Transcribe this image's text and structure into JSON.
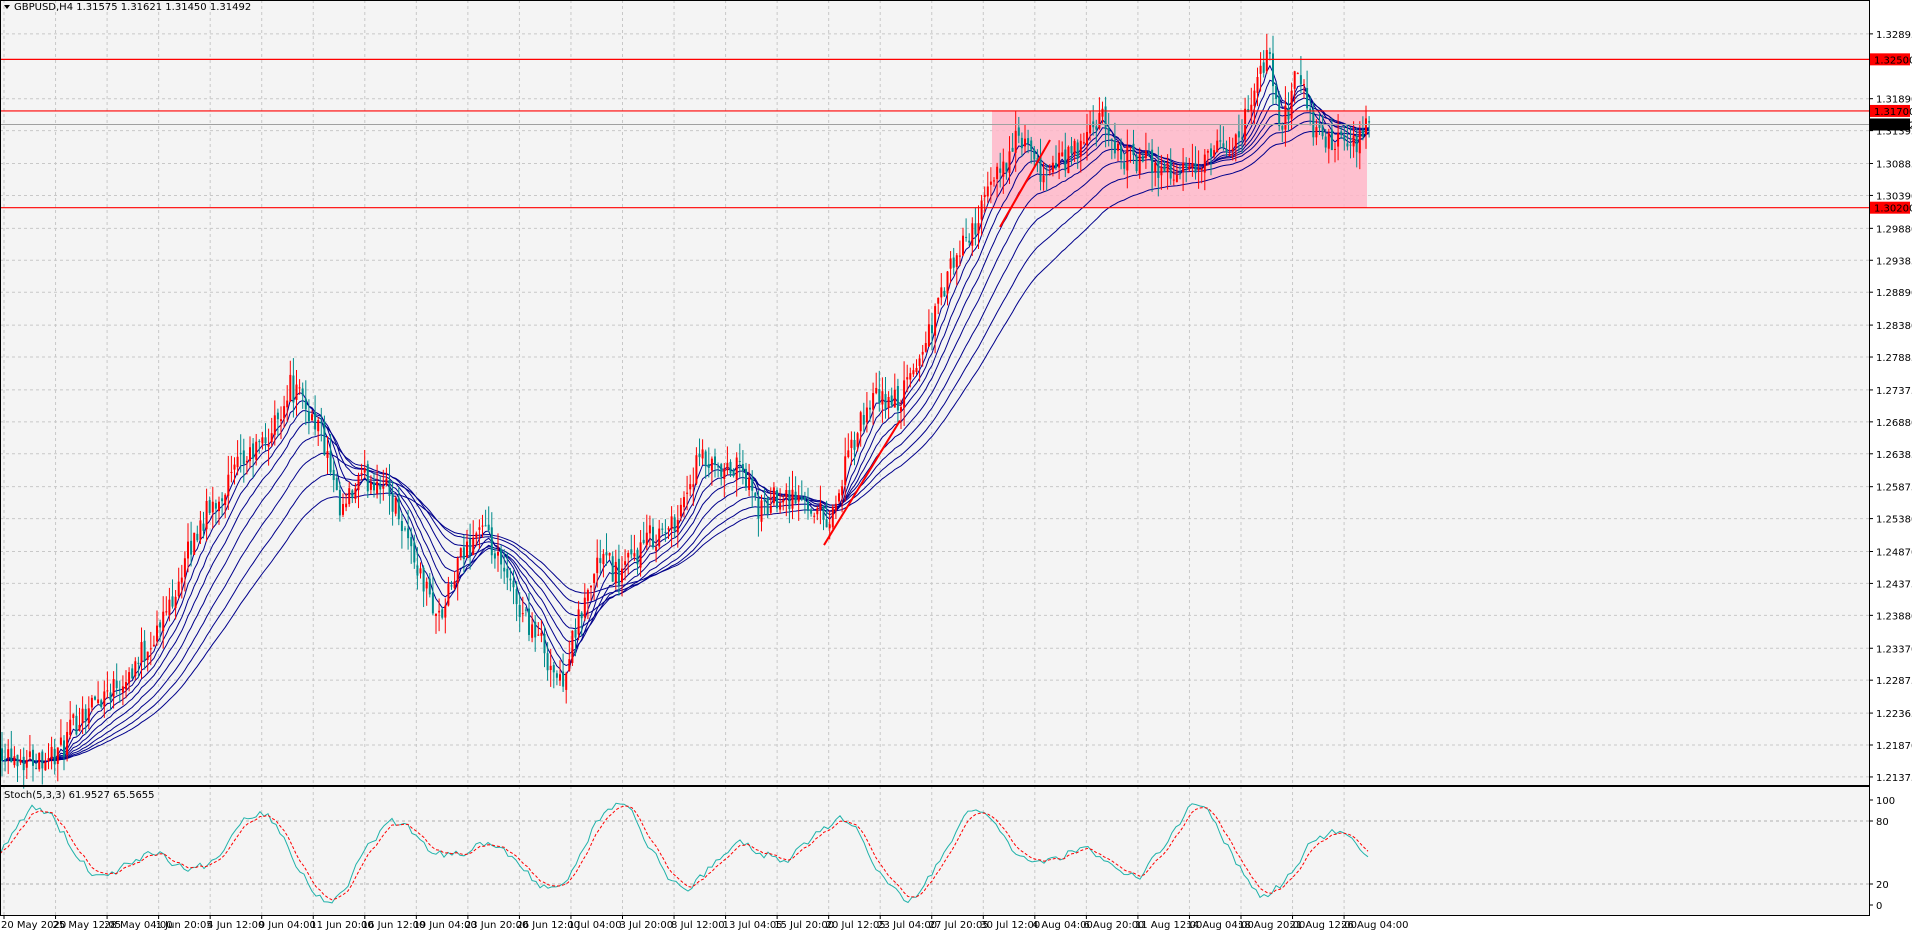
{
  "chart_data": {
    "type": "candlestick",
    "title": "GBPUSD,H4 1.31575 1.31621 1.31450 1.31492",
    "y_ticks": [
      "1.32895",
      "1.31890",
      "1.31395",
      "1.30885",
      "1.30390",
      "1.29880",
      "1.29385",
      "1.28890",
      "1.28380",
      "1.27885",
      "1.27375",
      "1.26880",
      "1.26385",
      "1.25875",
      "1.25380",
      "1.24870",
      "1.24375",
      "1.23880",
      "1.23370",
      "1.22875",
      "1.22365",
      "1.21870",
      "1.21375"
    ],
    "ylim": [
      1.2125,
      1.3342
    ],
    "x_labels": [
      "20 May 2020",
      "25 May 12:05",
      "28 May 04:00",
      "1 Jun 20:05",
      "4 Jun 12:00",
      "9 Jun 04:00",
      "11 Jun 20:00",
      "16 Jun 12:00",
      "19 Jun 04:00",
      "23 Jun 20:00",
      "26 Jun 12:00",
      "1 Jul 04:00",
      "3 Jul 20:00",
      "8 Jul 12:00",
      "13 Jul 04:05",
      "15 Jul 20:00",
      "20 Jul 12:05",
      "23 Jul 04:00",
      "27 Jul 20:05",
      "30 Jul 12:00",
      "4 Aug 04:00",
      "6 Aug 20:00",
      "11 Aug 12:00",
      "14 Aug 04:00",
      "18 Aug 20:00",
      "21 Aug 12:00",
      "26 Aug 04:00"
    ],
    "price_path": [
      [
        0,
        1.2185
      ],
      [
        25,
        1.2165
      ],
      [
        60,
        1.2175
      ],
      [
        80,
        1.2235
      ],
      [
        100,
        1.2262
      ],
      [
        130,
        1.2302
      ],
      [
        160,
        1.237
      ],
      [
        200,
        1.253
      ],
      [
        240,
        1.262
      ],
      [
        270,
        1.2665
      ],
      [
        290,
        1.2745
      ],
      [
        320,
        1.268
      ],
      [
        340,
        1.254
      ],
      [
        360,
        1.2595
      ],
      [
        380,
        1.26
      ],
      [
        400,
        1.2545
      ],
      [
        420,
        1.245
      ],
      [
        440,
        1.238
      ],
      [
        460,
        1.247
      ],
      [
        480,
        1.253
      ],
      [
        500,
        1.246
      ],
      [
        520,
        1.24
      ],
      [
        540,
        1.235
      ],
      [
        560,
        1.228
      ],
      [
        580,
        1.2385
      ],
      [
        600,
        1.248
      ],
      [
        620,
        1.245
      ],
      [
        650,
        1.251
      ],
      [
        670,
        1.252
      ],
      [
        700,
        1.263
      ],
      [
        720,
        1.26
      ],
      [
        740,
        1.262
      ],
      [
        760,
        1.2545
      ],
      [
        780,
        1.258
      ],
      [
        810,
        1.256
      ],
      [
        830,
        1.2535
      ],
      [
        850,
        1.264
      ],
      [
        870,
        1.272
      ],
      [
        900,
        1.272
      ],
      [
        920,
        1.279
      ],
      [
        950,
        1.292
      ],
      [
        980,
        1.301
      ],
      [
        1000,
        1.308
      ],
      [
        1020,
        1.313
      ],
      [
        1040,
        1.307
      ],
      [
        1060,
        1.309
      ],
      [
        1080,
        1.311
      ],
      [
        1100,
        1.316
      ],
      [
        1120,
        1.31
      ],
      [
        1150,
        1.309
      ],
      [
        1180,
        1.307
      ],
      [
        1200,
        1.308
      ],
      [
        1220,
        1.311
      ],
      [
        1240,
        1.313
      ],
      [
        1260,
        1.324
      ],
      [
        1270,
        1.325
      ],
      [
        1280,
        1.313
      ],
      [
        1300,
        1.324
      ],
      [
        1310,
        1.315
      ],
      [
        1330,
        1.312
      ],
      [
        1350,
        1.311
      ],
      [
        1371,
        1.3149
      ]
    ],
    "levels": [
      {
        "price": 1.325,
        "label": "1.32500",
        "color": "#ff0000"
      },
      {
        "price": 1.317,
        "label": "1.31700",
        "color": "#ff0000"
      },
      {
        "price": 1.302,
        "label": "1.30200",
        "color": "#ff0000"
      }
    ],
    "current_price": {
      "price": 1.3149,
      "label": "1.31492"
    },
    "zone": {
      "x_range": [
        992,
        1367
      ],
      "y_range": [
        1.302,
        1.317
      ],
      "color": "#ffb6c8"
    },
    "trendlines": [
      [
        [
          824,
          1.2497
        ],
        [
          900,
          1.269
        ]
      ],
      [
        [
          1000,
          1.299
        ],
        [
          1050,
          1.3125
        ]
      ]
    ],
    "indicator": {
      "name": "Stoch(5,3,3) 61.9527 65.5655",
      "y_ticks": [
        "100",
        "80",
        "20",
        "0"
      ],
      "ylim": [
        0,
        100
      ],
      "main_color": "#20b2aa",
      "signal_color": "#ff0000"
    },
    "colors": {
      "up_candle": "#ff0000",
      "down_candle": "#008b8b",
      "ma": "#00008b",
      "grid": "#c8c8c8",
      "background": "#f4f4f4"
    },
    "grid": true
  }
}
